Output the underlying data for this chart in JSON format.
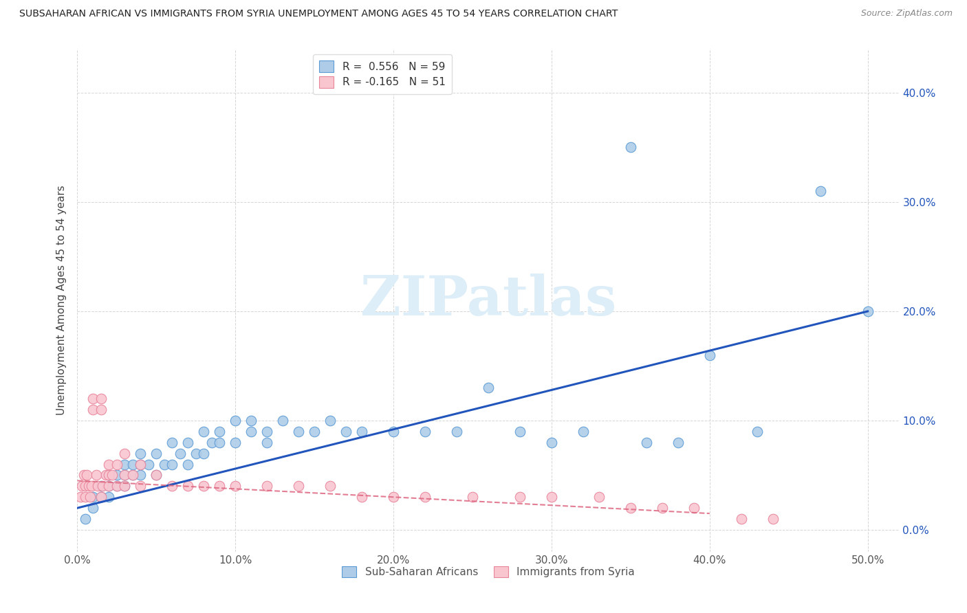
{
  "title": "SUBSAHARAN AFRICAN VS IMMIGRANTS FROM SYRIA UNEMPLOYMENT AMONG AGES 45 TO 54 YEARS CORRELATION CHART",
  "source": "Source: ZipAtlas.com",
  "ylabel": "Unemployment Among Ages 45 to 54 years",
  "xlim": [
    0.0,
    0.52
  ],
  "ylim": [
    -0.02,
    0.44
  ],
  "xticks": [
    0.0,
    0.1,
    0.2,
    0.3,
    0.4,
    0.5
  ],
  "xticklabels": [
    "0.0%",
    "10.0%",
    "20.0%",
    "30.0%",
    "40.0%",
    "50.0%"
  ],
  "yticks": [
    0.0,
    0.1,
    0.2,
    0.3,
    0.4
  ],
  "yticklabels": [
    "0.0%",
    "10.0%",
    "20.0%",
    "30.0%",
    "40.0%"
  ],
  "blue_color": "#aecce8",
  "blue_edge_color": "#5b9bd5",
  "blue_line_color": "#2255bb",
  "pink_color": "#f9c6d0",
  "pink_edge_color": "#e8849a",
  "pink_line_color": "#dd6680",
  "watermark_color": "#ddeef8",
  "blue_scatter_x": [
    0.005,
    0.01,
    0.01,
    0.015,
    0.015,
    0.02,
    0.02,
    0.02,
    0.025,
    0.025,
    0.03,
    0.03,
    0.03,
    0.035,
    0.035,
    0.04,
    0.04,
    0.04,
    0.045,
    0.05,
    0.05,
    0.055,
    0.06,
    0.06,
    0.065,
    0.07,
    0.07,
    0.075,
    0.08,
    0.08,
    0.085,
    0.09,
    0.09,
    0.1,
    0.1,
    0.11,
    0.11,
    0.12,
    0.12,
    0.13,
    0.14,
    0.15,
    0.16,
    0.17,
    0.18,
    0.2,
    0.22,
    0.24,
    0.26,
    0.28,
    0.3,
    0.32,
    0.35,
    0.36,
    0.38,
    0.4,
    0.43,
    0.47,
    0.5
  ],
  "blue_scatter_y": [
    0.01,
    0.02,
    0.03,
    0.03,
    0.04,
    0.03,
    0.04,
    0.05,
    0.04,
    0.05,
    0.04,
    0.05,
    0.06,
    0.05,
    0.06,
    0.05,
    0.06,
    0.07,
    0.06,
    0.05,
    0.07,
    0.06,
    0.06,
    0.08,
    0.07,
    0.06,
    0.08,
    0.07,
    0.07,
    0.09,
    0.08,
    0.08,
    0.09,
    0.08,
    0.1,
    0.09,
    0.1,
    0.08,
    0.09,
    0.1,
    0.09,
    0.09,
    0.1,
    0.09,
    0.09,
    0.09,
    0.09,
    0.09,
    0.13,
    0.09,
    0.08,
    0.09,
    0.35,
    0.08,
    0.08,
    0.16,
    0.09,
    0.31,
    0.2
  ],
  "pink_scatter_x": [
    0.002,
    0.003,
    0.004,
    0.005,
    0.005,
    0.006,
    0.007,
    0.008,
    0.009,
    0.01,
    0.01,
    0.012,
    0.013,
    0.015,
    0.015,
    0.015,
    0.016,
    0.018,
    0.02,
    0.02,
    0.02,
    0.022,
    0.025,
    0.025,
    0.03,
    0.03,
    0.03,
    0.035,
    0.04,
    0.04,
    0.05,
    0.06,
    0.07,
    0.08,
    0.09,
    0.1,
    0.12,
    0.14,
    0.16,
    0.18,
    0.2,
    0.22,
    0.25,
    0.28,
    0.3,
    0.33,
    0.35,
    0.37,
    0.39,
    0.42,
    0.44
  ],
  "pink_scatter_y": [
    0.03,
    0.04,
    0.05,
    0.04,
    0.03,
    0.05,
    0.04,
    0.03,
    0.04,
    0.12,
    0.11,
    0.05,
    0.04,
    0.12,
    0.11,
    0.03,
    0.04,
    0.05,
    0.06,
    0.05,
    0.04,
    0.05,
    0.06,
    0.04,
    0.07,
    0.05,
    0.04,
    0.05,
    0.06,
    0.04,
    0.05,
    0.04,
    0.04,
    0.04,
    0.04,
    0.04,
    0.04,
    0.04,
    0.04,
    0.03,
    0.03,
    0.03,
    0.03,
    0.03,
    0.03,
    0.03,
    0.02,
    0.02,
    0.02,
    0.01,
    0.01
  ],
  "blue_line_x": [
    0.0,
    0.5
  ],
  "blue_line_y": [
    0.02,
    0.2
  ],
  "pink_line_x": [
    0.0,
    0.4
  ],
  "pink_line_y": [
    0.045,
    0.015
  ]
}
